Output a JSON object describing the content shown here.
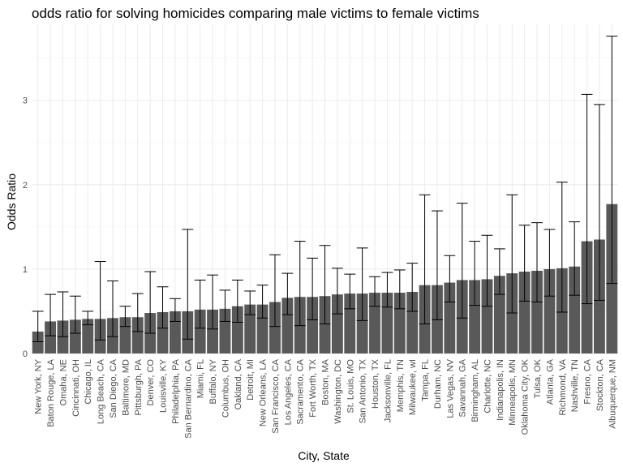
{
  "chart_data": {
    "type": "bar",
    "title": "odds ratio for solving homicides comparing male victims to female victims",
    "xlabel": "City, State",
    "ylabel": "Odds Ratio",
    "ylim": [
      0,
      3.9
    ],
    "yticks": [
      0,
      1,
      2,
      3
    ],
    "grid": true,
    "categories": [
      "New York, NY",
      "Baton Rouge, LA",
      "Omaha, NE",
      "Cincinnati, OH",
      "Chicago, IL",
      "Long Beach, CA",
      "San Diego, CA",
      "Baltimore, MD",
      "Pittsburgh, PA",
      "Denver, CO",
      "Louisville, KY",
      "Philadelphia, PA",
      "San Bernardino, CA",
      "Miami, FL",
      "Buffalo, NY",
      "Columbus, OH",
      "Oakland, CA",
      "Detroit, MI",
      "New Orleans, LA",
      "San Francisco, CA",
      "Los Angeles, CA",
      "Sacramento, CA",
      "Fort Worth, TX",
      "Boston, MA",
      "Washington, DC",
      "St. Louis, MO",
      "San Antonio, TX",
      "Houston, TX",
      "Jacksonville, FL",
      "Memphis, TN",
      "Milwaukee, wI",
      "Tampa, FL",
      "Durham, NC",
      "Las Vegas, NV",
      "Savannah, GA",
      "Birmingham, AL",
      "Charlotte, NC",
      "Indianapolis, IN",
      "Minneapolis, MN",
      "Oklahoma City, OK",
      "Tulsa, OK",
      "Atlanta, GA",
      "Richmond, VA",
      "Nashville, TN",
      "Fresno, CA",
      "Stockton, CA",
      "Albuquerque, NM"
    ],
    "values": [
      0.26,
      0.38,
      0.39,
      0.4,
      0.41,
      0.41,
      0.42,
      0.43,
      0.43,
      0.48,
      0.49,
      0.5,
      0.5,
      0.52,
      0.52,
      0.53,
      0.56,
      0.58,
      0.58,
      0.61,
      0.66,
      0.67,
      0.67,
      0.68,
      0.7,
      0.71,
      0.71,
      0.72,
      0.72,
      0.72,
      0.73,
      0.81,
      0.81,
      0.84,
      0.87,
      0.87,
      0.88,
      0.92,
      0.95,
      0.97,
      0.98,
      1.0,
      1.01,
      1.03,
      1.33,
      1.35,
      1.77
    ],
    "ci_low": [
      0.14,
      0.21,
      0.2,
      0.24,
      0.34,
      0.16,
      0.2,
      0.32,
      0.26,
      0.24,
      0.3,
      0.38,
      0.17,
      0.3,
      0.29,
      0.38,
      0.37,
      0.46,
      0.42,
      0.32,
      0.46,
      0.33,
      0.4,
      0.35,
      0.47,
      0.53,
      0.39,
      0.56,
      0.55,
      0.53,
      0.5,
      0.35,
      0.4,
      0.61,
      0.42,
      0.57,
      0.56,
      0.7,
      0.48,
      0.62,
      0.61,
      0.68,
      0.49,
      0.69,
      0.59,
      0.63,
      0.83
    ],
    "ci_high": [
      0.5,
      0.7,
      0.73,
      0.68,
      0.5,
      1.09,
      0.86,
      0.56,
      0.71,
      0.97,
      0.79,
      0.65,
      1.47,
      0.87,
      0.93,
      0.75,
      0.87,
      0.74,
      0.81,
      1.17,
      0.95,
      1.33,
      1.13,
      1.28,
      1.01,
      0.94,
      1.25,
      0.91,
      0.96,
      0.99,
      1.07,
      1.88,
      1.69,
      1.16,
      1.78,
      1.33,
      1.4,
      1.24,
      1.88,
      1.52,
      1.55,
      1.47,
      2.03,
      1.56,
      3.07,
      2.95,
      3.76
    ]
  }
}
